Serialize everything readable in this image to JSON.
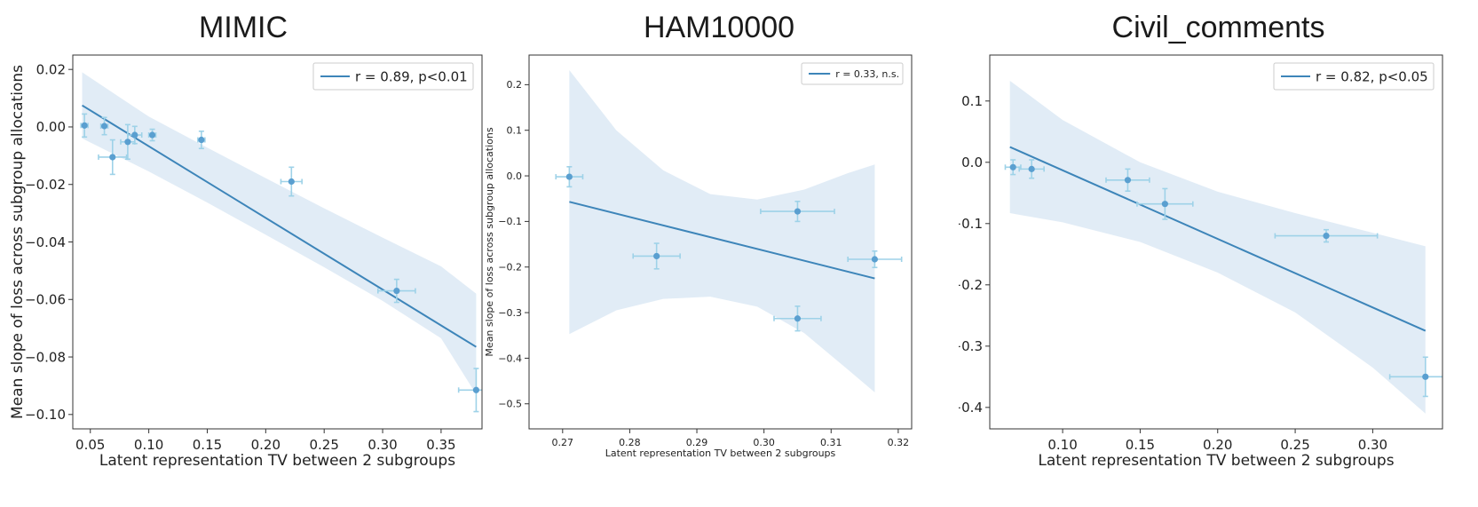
{
  "chart_data": [
    {
      "type": "scatter",
      "title": "MIMIC",
      "xlabel": "Latent representation TV between 2 subgroups",
      "ylabel": "Mean slope of loss across subgroup allocations",
      "xlim": [
        0.035,
        0.385
      ],
      "ylim": [
        -0.105,
        0.025
      ],
      "xticks": [
        0.05,
        0.1,
        0.15,
        0.2,
        0.25,
        0.3,
        0.35
      ],
      "yticks": [
        0.02,
        0.0,
        -0.02,
        -0.04,
        -0.06,
        -0.08,
        -0.1
      ],
      "xtick_labels": [
        "0.05",
        "0.10",
        "0.15",
        "0.20",
        "0.25",
        "0.30",
        "0.35"
      ],
      "ytick_labels": [
        "0.02",
        "0.00",
        "−0.02",
        "−0.04",
        "−0.06",
        "−0.08",
        "−0.10"
      ],
      "grid": false,
      "legend_position": "top-right",
      "legend": [
        "r = 0.89, p<0.01"
      ],
      "points": [
        {
          "x": 0.045,
          "y": 0.0005,
          "xerr": 0.003,
          "yerr": 0.004
        },
        {
          "x": 0.062,
          "y": 0.0003,
          "xerr": 0.003,
          "yerr": 0.003
        },
        {
          "x": 0.069,
          "y": -0.0105,
          "xerr": 0.012,
          "yerr": 0.006
        },
        {
          "x": 0.082,
          "y": -0.0052,
          "xerr": 0.006,
          "yerr": 0.006
        },
        {
          "x": 0.088,
          "y": -0.0028,
          "xerr": 0.006,
          "yerr": 0.003
        },
        {
          "x": 0.103,
          "y": -0.0028,
          "xerr": 0.003,
          "yerr": 0.002
        },
        {
          "x": 0.145,
          "y": -0.0045,
          "xerr": 0.003,
          "yerr": 0.003
        },
        {
          "x": 0.222,
          "y": -0.019,
          "xerr": 0.009,
          "yerr": 0.005
        },
        {
          "x": 0.312,
          "y": -0.057,
          "xerr": 0.016,
          "yerr": 0.004
        },
        {
          "x": 0.38,
          "y": -0.0915,
          "xerr": 0.015,
          "yerr": 0.0075
        }
      ],
      "fit": {
        "x": [
          0.043,
          0.38
        ],
        "y": [
          0.0075,
          -0.0765
        ]
      },
      "band": {
        "x": [
          0.043,
          0.1,
          0.15,
          0.2,
          0.25,
          0.3,
          0.35,
          0.38
        ],
        "upper": [
          0.019,
          0.0036,
          -0.0072,
          -0.0178,
          -0.0283,
          -0.0385,
          -0.0485,
          -0.058
        ],
        "lower": [
          -0.004,
          -0.0155,
          -0.0263,
          -0.0375,
          -0.0488,
          -0.0605,
          -0.0735,
          -0.093
        ]
      },
      "colors": {
        "line": "#3d85b9",
        "band": "#d7e6f3",
        "point": "#5a9fd0",
        "errbar": "#9ed2e8"
      }
    },
    {
      "type": "scatter",
      "title": "HAM10000",
      "xlabel": "Latent representation TV between 2 subgroups",
      "ylabel": "Mean slope of loss across subgroup allocations",
      "xlim": [
        0.265,
        0.322
      ],
      "ylim": [
        -0.555,
        0.265
      ],
      "xticks": [
        0.27,
        0.28,
        0.29,
        0.3,
        0.31,
        0.32
      ],
      "yticks": [
        0.2,
        0.1,
        0.0,
        -0.1,
        -0.2,
        -0.3,
        -0.4,
        -0.5
      ],
      "xtick_labels": [
        "0.27",
        "0.28",
        "0.29",
        "0.30",
        "0.31",
        "0.32"
      ],
      "ytick_labels": [
        "0.2",
        "0.1",
        "0.0",
        "−0.1",
        "−0.2",
        "−0.3",
        "−0.4",
        "−0.5"
      ],
      "grid": false,
      "legend_position": "top-right",
      "legend": [
        "r = 0.33, n.s."
      ],
      "points": [
        {
          "x": 0.271,
          "y": -0.002,
          "xerr": 0.002,
          "yerr": 0.022
        },
        {
          "x": 0.284,
          "y": -0.176,
          "xerr": 0.0035,
          "yerr": 0.028
        },
        {
          "x": 0.305,
          "y": -0.078,
          "xerr": 0.0055,
          "yerr": 0.022
        },
        {
          "x": 0.305,
          "y": -0.313,
          "xerr": 0.0035,
          "yerr": 0.027
        },
        {
          "x": 0.3165,
          "y": -0.183,
          "xerr": 0.004,
          "yerr": 0.018
        }
      ],
      "fit": {
        "x": [
          0.271,
          0.3165
        ],
        "y": [
          -0.057,
          -0.225
        ]
      },
      "band": {
        "x": [
          0.271,
          0.278,
          0.285,
          0.292,
          0.299,
          0.306,
          0.3125,
          0.3165
        ],
        "upper": [
          0.232,
          0.1,
          0.012,
          -0.04,
          -0.052,
          -0.03,
          0.006,
          0.025
        ],
        "lower": [
          -0.347,
          -0.295,
          -0.27,
          -0.265,
          -0.287,
          -0.345,
          -0.425,
          -0.475
        ]
      },
      "colors": {
        "line": "#3d85b9",
        "band": "#d7e6f3",
        "point": "#5a9fd0",
        "errbar": "#9ed2e8"
      }
    },
    {
      "type": "scatter",
      "title": "Civil_comments",
      "xlabel": "Latent representation TV between 2 subgroups",
      "ylabel": "Mean slope of loss across subgroup allocations",
      "xlim": [
        0.053,
        0.345
      ],
      "ylim": [
        -0.435,
        0.175
      ],
      "xticks": [
        0.1,
        0.15,
        0.2,
        0.25,
        0.3
      ],
      "yticks": [
        0.1,
        0.0,
        -0.1,
        -0.2,
        -0.3,
        -0.4
      ],
      "xtick_labels": [
        "0.10",
        "0.15",
        "0.20",
        "0.25",
        "0.30"
      ],
      "ytick_labels": [
        "0.1",
        "0.0",
        "−0.1",
        "−0.2",
        "−0.3",
        "−0.4"
      ],
      "grid": false,
      "legend_position": "top-right",
      "legend": [
        "r = 0.82, p<0.05"
      ],
      "points": [
        {
          "x": 0.068,
          "y": -0.008,
          "xerr": 0.005,
          "yerr": 0.012
        },
        {
          "x": 0.08,
          "y": -0.011,
          "xerr": 0.008,
          "yerr": 0.015
        },
        {
          "x": 0.142,
          "y": -0.029,
          "xerr": 0.014,
          "yerr": 0.018
        },
        {
          "x": 0.166,
          "y": -0.068,
          "xerr": 0.018,
          "yerr": 0.025
        },
        {
          "x": 0.27,
          "y": -0.12,
          "xerr": 0.033,
          "yerr": 0.01
        },
        {
          "x": 0.334,
          "y": -0.35,
          "xerr": 0.023,
          "yerr": 0.032
        }
      ],
      "fit": {
        "x": [
          0.066,
          0.334
        ],
        "y": [
          0.025,
          -0.275
        ]
      },
      "band": {
        "x": [
          0.066,
          0.1,
          0.15,
          0.2,
          0.25,
          0.3,
          0.334
        ],
        "upper": [
          0.133,
          0.069,
          0.0,
          -0.048,
          -0.083,
          -0.115,
          -0.137
        ],
        "lower": [
          -0.083,
          -0.098,
          -0.13,
          -0.18,
          -0.245,
          -0.335,
          -0.41
        ]
      },
      "colors": {
        "line": "#3d85b9",
        "band": "#d7e6f3",
        "point": "#5a9fd0",
        "errbar": "#9ed2e8"
      }
    }
  ]
}
